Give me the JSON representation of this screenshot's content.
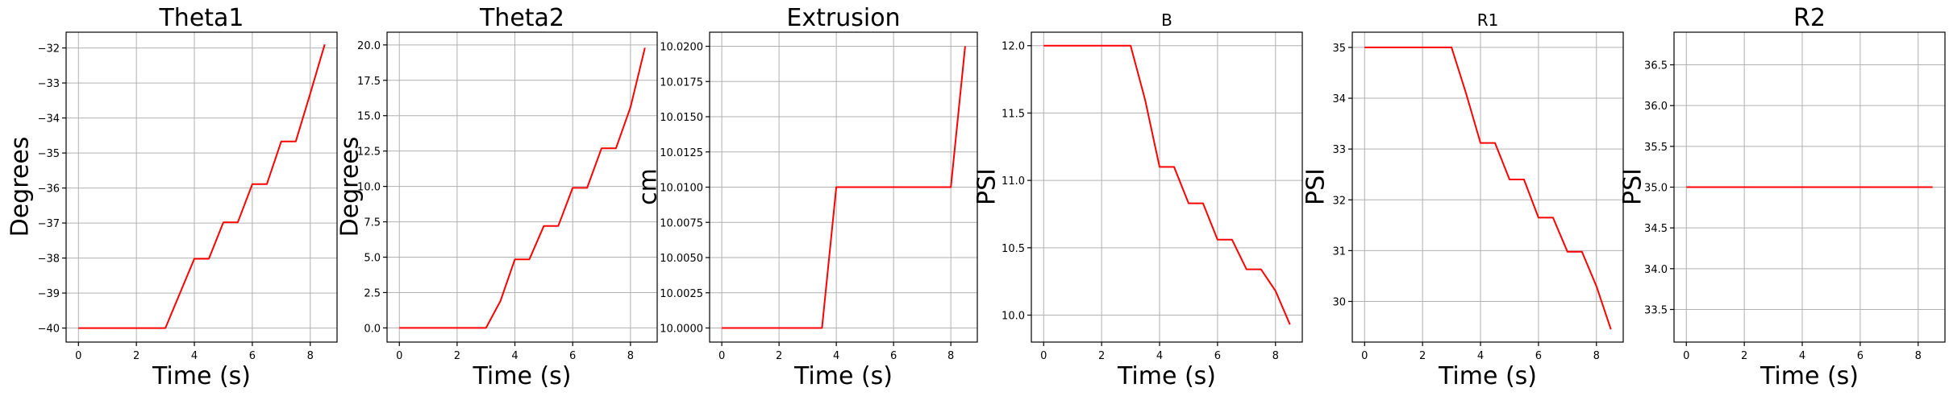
{
  "colors": {
    "series": "#ff0000",
    "grid": "#b0b0b0",
    "axis": "#000000"
  },
  "chart_data": [
    {
      "type": "line",
      "title": "Theta1",
      "xlabel": "Time (s)",
      "ylabel": "Degrees",
      "xlim": [
        -0.425,
        8.925
      ],
      "ylim": [
        -40.4,
        -31.55
      ],
      "xticks": [
        0,
        2,
        4,
        6,
        8
      ],
      "xtick_labels": [
        "0",
        "2",
        "4",
        "6",
        "8"
      ],
      "yticks": [
        -40,
        -39,
        -38,
        -37,
        -36,
        -35,
        -34,
        -33,
        -32
      ],
      "ytick_labels": [
        "−40",
        "−39",
        "−38",
        "−37",
        "−36",
        "−35",
        "−34",
        "−33",
        "−32"
      ],
      "grid": true,
      "series": [
        {
          "x": [
            0,
            3,
            4,
            4.5,
            5,
            5.5,
            6,
            6.5,
            7,
            7.5,
            8,
            8.5
          ],
          "y": [
            -40,
            -40,
            -38.02,
            -38.02,
            -36.98,
            -36.98,
            -35.89,
            -35.89,
            -34.67,
            -34.67,
            -33.3,
            -31.9
          ]
        }
      ]
    },
    {
      "type": "line",
      "title": "Theta2",
      "xlabel": "Time (s)",
      "ylabel": "Degrees",
      "xlim": [
        -0.425,
        8.925
      ],
      "ylim": [
        -1.0,
        20.9
      ],
      "xticks": [
        0,
        2,
        4,
        6,
        8
      ],
      "xtick_labels": [
        "0",
        "2",
        "4",
        "6",
        "8"
      ],
      "yticks": [
        0,
        2.5,
        5,
        7.5,
        10,
        12.5,
        15,
        17.5,
        20
      ],
      "ytick_labels": [
        "0.0",
        "2.5",
        "5.0",
        "7.5",
        "10.0",
        "12.5",
        "15.0",
        "17.5",
        "20.0"
      ],
      "grid": true,
      "series": [
        {
          "x": [
            0,
            3,
            3.5,
            4,
            4.5,
            5,
            5.5,
            6,
            6.5,
            7,
            7.5,
            8,
            8.5
          ],
          "y": [
            0,
            0,
            1.9,
            4.85,
            4.85,
            7.2,
            7.2,
            9.9,
            9.9,
            12.7,
            12.7,
            15.6,
            19.8
          ]
        }
      ]
    },
    {
      "type": "line",
      "title": "Extrusion",
      "xlabel": "Time (s)",
      "ylabel": "cm",
      "xlim": [
        -0.425,
        8.925
      ],
      "ylim": [
        9.999,
        10.021
      ],
      "xticks": [
        0,
        2,
        4,
        6,
        8
      ],
      "xtick_labels": [
        "0",
        "2",
        "4",
        "6",
        "8"
      ],
      "yticks": [
        10.0,
        10.0025,
        10.005,
        10.0075,
        10.01,
        10.0125,
        10.015,
        10.0175,
        10.02
      ],
      "ytick_labels": [
        "10.0000",
        "10.0025",
        "10.0050",
        "10.0075",
        "10.0100",
        "10.0125",
        "10.0150",
        "10.0175",
        "10.0200"
      ],
      "grid": true,
      "series": [
        {
          "x": [
            0,
            3.5,
            4,
            8,
            8.5
          ],
          "y": [
            10.0,
            10.0,
            10.01,
            10.01,
            10.02
          ]
        }
      ]
    },
    {
      "type": "line",
      "title": "B",
      "xlabel": "Time (s)",
      "ylabel": "PSI",
      "xlim": [
        -0.425,
        8.925
      ],
      "ylim": [
        9.8,
        12.1
      ],
      "xticks": [
        0,
        2,
        4,
        6,
        8
      ],
      "xtick_labels": [
        "0",
        "2",
        "4",
        "6",
        "8"
      ],
      "yticks": [
        10.0,
        10.5,
        11.0,
        11.5,
        12.0
      ],
      "ytick_labels": [
        "10.0",
        "10.5",
        "11.0",
        "11.5",
        "12.0"
      ],
      "grid": true,
      "series": [
        {
          "x": [
            0,
            3,
            3.5,
            4,
            4.5,
            5,
            5.5,
            6,
            6.5,
            7,
            7.5,
            8,
            8.5
          ],
          "y": [
            12.0,
            12.0,
            11.6,
            11.1,
            11.1,
            10.83,
            10.83,
            10.56,
            10.56,
            10.34,
            10.34,
            10.18,
            9.93
          ]
        }
      ]
    },
    {
      "type": "line",
      "title": "R1",
      "xlabel": "Time (s)",
      "ylabel": "PSI",
      "xlim": [
        -0.425,
        8.925
      ],
      "ylim": [
        29.2,
        35.3
      ],
      "xticks": [
        0,
        2,
        4,
        6,
        8
      ],
      "xtick_labels": [
        "0",
        "2",
        "4",
        "6",
        "8"
      ],
      "yticks": [
        30,
        31,
        32,
        33,
        34,
        35
      ],
      "ytick_labels": [
        "30",
        "31",
        "32",
        "33",
        "34",
        "35"
      ],
      "grid": true,
      "series": [
        {
          "x": [
            0,
            3,
            3.5,
            4,
            4.5,
            5,
            5.5,
            6,
            6.5,
            7,
            7.5,
            8,
            8.5
          ],
          "y": [
            35,
            35,
            34.1,
            33.12,
            33.12,
            32.4,
            32.4,
            31.65,
            31.65,
            30.98,
            30.98,
            30.3,
            29.45
          ]
        }
      ]
    },
    {
      "type": "line",
      "title": "R2",
      "xlabel": "Time (s)",
      "ylabel": "PSI",
      "xlim": [
        -0.425,
        8.925
      ],
      "ylim": [
        33.1,
        36.9
      ],
      "xticks": [
        0,
        2,
        4,
        6,
        8
      ],
      "xtick_labels": [
        "0",
        "2",
        "4",
        "6",
        "8"
      ],
      "yticks": [
        33.5,
        34.0,
        34.5,
        35.0,
        35.5,
        36.0,
        36.5
      ],
      "ytick_labels": [
        "33.5",
        "34.0",
        "34.5",
        "35.0",
        "35.5",
        "36.0",
        "36.5"
      ],
      "grid": true,
      "series": [
        {
          "x": [
            0,
            8.5
          ],
          "y": [
            35,
            35
          ]
        }
      ]
    }
  ]
}
